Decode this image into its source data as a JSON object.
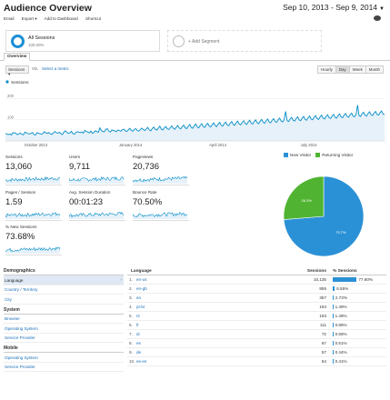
{
  "header": {
    "title": "Audience Overview",
    "date_range": "Sep 10, 2013 - Sep 9, 2014"
  },
  "actions": [
    "Email",
    "Export ▾",
    "Add to Dashboard",
    "Shortcut"
  ],
  "segments": {
    "active_label": "All Sessions",
    "active_sub": "100.00%",
    "add_label": "+ Add Segment"
  },
  "tabs": {
    "overview": "Overview"
  },
  "controls": {
    "metric": "Sessions ▾",
    "vs": "VS.",
    "select_metric": "Select a metric",
    "granularity": [
      "Hourly",
      "Day",
      "Week",
      "Month"
    ],
    "active_granularity": "Day"
  },
  "chart_data": {
    "type": "line",
    "series_name": "Sessions",
    "ylim": [
      0,
      250
    ],
    "y_ticks": [
      100,
      200
    ],
    "x_tick_labels": [
      "October 2013",
      "January 2014",
      "April 2014",
      "July 2014"
    ],
    "color": "#058dc7",
    "values": [
      35,
      32,
      30,
      33,
      28,
      40,
      38,
      36,
      30,
      34,
      37,
      31,
      29,
      42,
      38,
      35,
      33,
      36,
      40,
      30,
      28,
      39,
      37,
      34,
      32,
      35,
      44,
      38,
      36,
      40,
      33,
      31,
      38,
      45,
      39,
      37,
      41,
      34,
      30,
      42,
      48,
      40,
      36,
      38,
      46,
      35,
      32,
      40,
      44,
      41,
      39,
      43,
      37,
      50,
      45,
      42,
      38,
      47,
      36,
      40,
      48,
      44,
      41,
      62,
      49,
      45,
      43,
      55,
      58,
      46,
      42,
      52,
      50,
      47,
      44,
      52,
      49,
      46,
      53,
      56,
      48,
      45,
      52,
      60,
      50,
      46,
      55,
      58,
      49,
      47,
      53,
      61,
      54,
      50,
      57,
      64,
      52,
      48,
      59,
      66,
      55,
      51,
      60,
      70,
      56,
      52,
      62,
      68,
      58,
      54,
      63,
      71,
      60,
      55,
      65,
      73,
      61,
      57,
      68,
      75,
      62,
      58,
      70,
      78,
      64,
      60,
      72,
      80,
      66,
      62,
      74,
      82,
      68,
      64,
      76,
      84,
      70,
      66,
      78,
      86,
      72,
      68,
      80,
      88,
      74,
      70,
      82,
      90,
      76,
      72,
      84,
      92,
      78,
      74,
      86,
      94,
      80,
      76,
      88,
      96,
      82,
      78,
      90,
      98,
      84,
      80,
      92,
      100,
      86,
      82,
      94,
      102,
      88,
      84,
      96,
      104,
      90,
      86,
      98,
      106,
      92,
      88,
      100,
      108,
      94,
      90,
      102,
      140,
      96,
      92,
      104,
      112,
      98,
      94,
      106,
      114,
      100,
      96,
      108,
      116,
      102,
      98,
      110,
      118,
      104,
      100,
      112,
      120,
      106,
      102,
      114,
      122,
      108,
      104,
      116,
      124,
      110,
      106,
      118,
      126,
      112,
      108,
      120,
      128,
      114,
      110,
      122,
      130,
      116,
      112,
      124,
      132,
      118,
      114,
      126,
      170,
      120,
      116,
      128,
      136,
      122,
      118,
      130,
      138,
      124,
      120,
      132,
      140,
      126,
      122,
      134,
      142,
      128,
      124
    ]
  },
  "tiles": [
    {
      "label": "Sessions",
      "value": "13,060"
    },
    {
      "label": "Users",
      "value": "9,711"
    },
    {
      "label": "Pageviews",
      "value": "20,736"
    },
    {
      "label": "Pages / Session",
      "value": "1.59"
    },
    {
      "label": "Avg. Session Duration",
      "value": "00:01:23"
    },
    {
      "label": "Bounce Rate",
      "value": "70.50%"
    },
    {
      "label": "% New Sessions",
      "value": "73.68%"
    }
  ],
  "pie": {
    "legend": [
      {
        "name": "New Visitor",
        "color": "#2b91d6"
      },
      {
        "name": "Returning Visitor",
        "color": "#50b432"
      }
    ],
    "slices": [
      {
        "name": "New Visitor",
        "percent": 73.7,
        "label": "73.7%",
        "color": "#2b91d6"
      },
      {
        "name": "Returning Visitor",
        "percent": 26.3,
        "label": "26.3%",
        "color": "#50b432"
      }
    ]
  },
  "demographics": {
    "title": "Demographics",
    "groups": [
      {
        "items": [
          "Language",
          "Country / Territory",
          "City"
        ],
        "selected": 0
      },
      {
        "title": "System",
        "items": [
          "Browser",
          "Operating System",
          "Service Provider"
        ]
      },
      {
        "title": "Mobile",
        "items": [
          "Operating System",
          "Service Provider"
        ]
      }
    ]
  },
  "language_table": {
    "headers": {
      "language": "Language",
      "sessions": "Sessions",
      "pct": "% Sessions"
    },
    "rows": [
      {
        "idx": "1.",
        "code": "en-us",
        "sessions": "10,135",
        "pct_label": "77.60%",
        "pct": 77.6
      },
      {
        "idx": "2.",
        "code": "en-gb",
        "sessions": "855",
        "pct_label": "6.55%",
        "pct": 6.55
      },
      {
        "idx": "3.",
        "code": "en",
        "sessions": "357",
        "pct_label": "2.73%",
        "pct": 2.73
      },
      {
        "idx": "4.",
        "code": "pt-br",
        "sessions": "194",
        "pct_label": "1.49%",
        "pct": 1.49
      },
      {
        "idx": "5.",
        "code": "nl",
        "sessions": "193",
        "pct_label": "1.48%",
        "pct": 1.48
      },
      {
        "idx": "6.",
        "code": "fr",
        "sessions": "111",
        "pct_label": "0.85%",
        "pct": 0.85
      },
      {
        "idx": "7.",
        "code": "id",
        "sessions": "72",
        "pct_label": "0.55%",
        "pct": 0.55
      },
      {
        "idx": "8.",
        "code": "es",
        "sessions": "67",
        "pct_label": "0.51%",
        "pct": 0.51
      },
      {
        "idx": "9.",
        "code": "de",
        "sessions": "57",
        "pct_label": "0.44%",
        "pct": 0.44
      },
      {
        "idx": "10.",
        "code": "es-es",
        "sessions": "54",
        "pct_label": "0.41%",
        "pct": 0.41
      }
    ]
  }
}
